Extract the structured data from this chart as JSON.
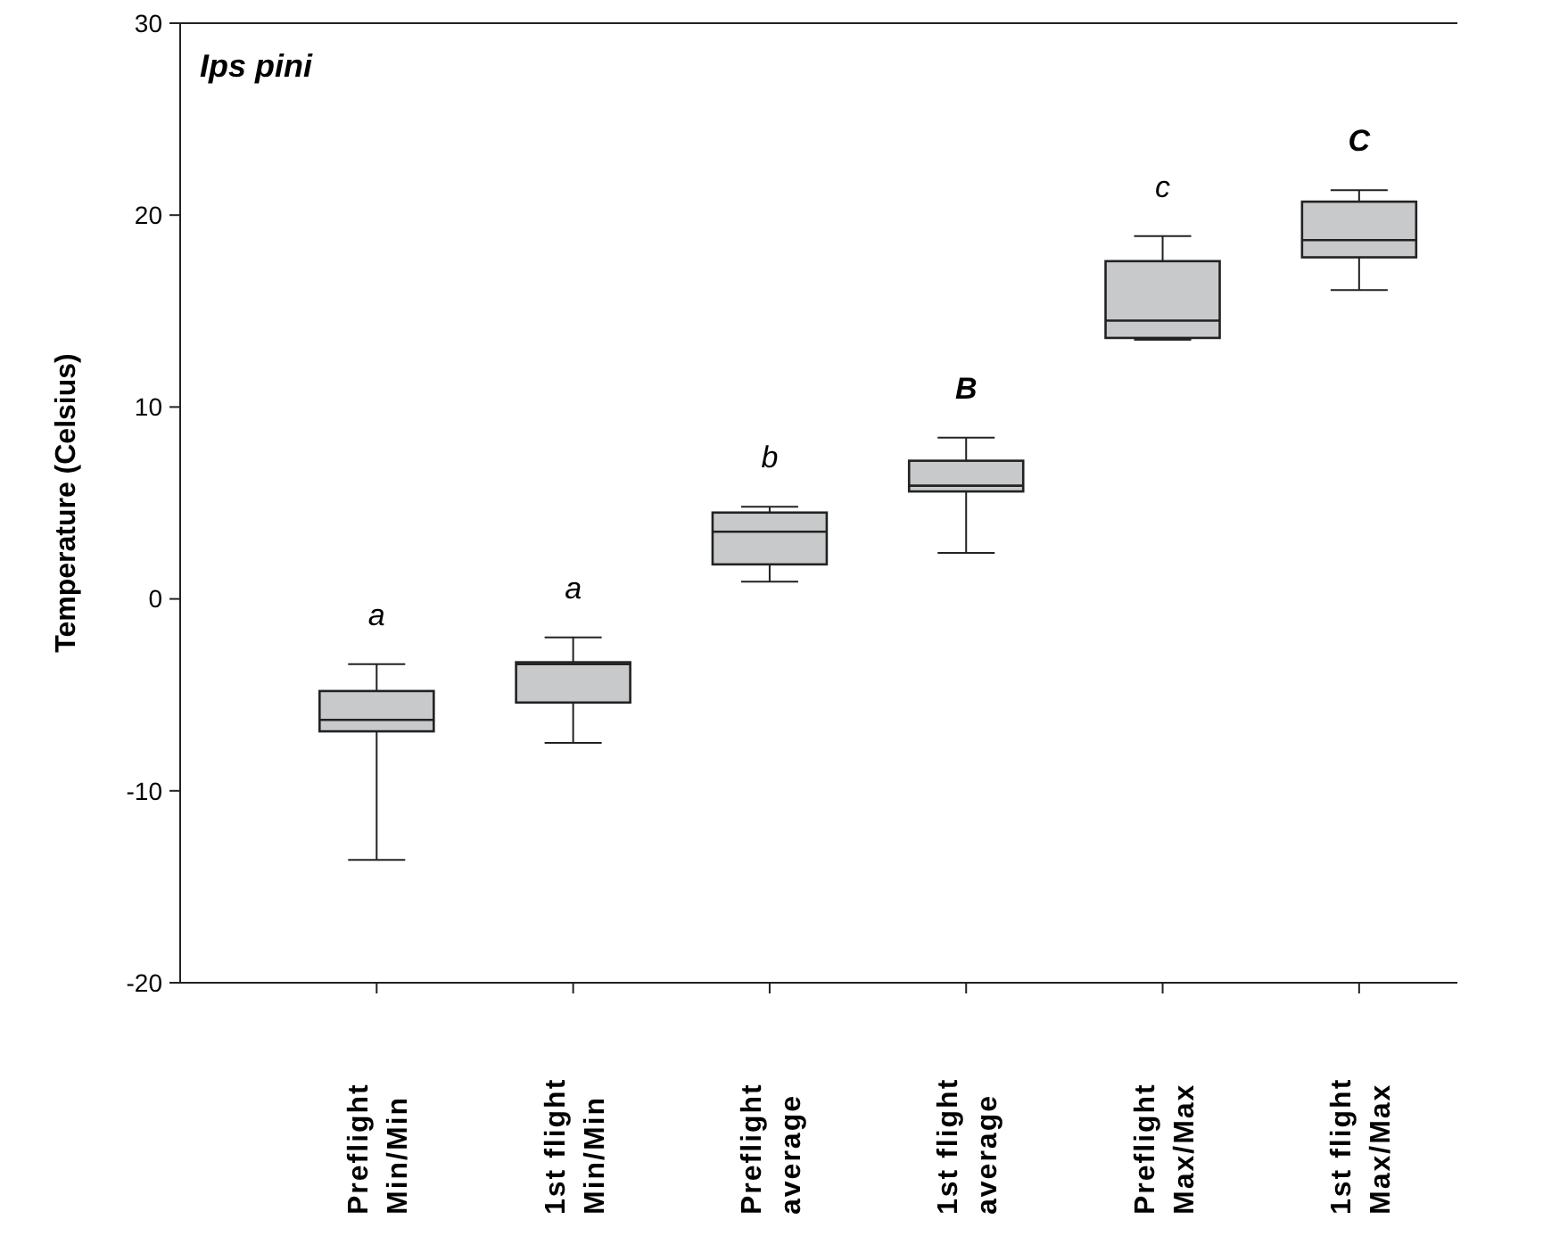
{
  "chart_data": {
    "type": "box",
    "title": "Ips pini",
    "ylabel": "Temperature (Celsius)",
    "categories": [
      "Preflight Min/Min",
      "1st flight Min/Min",
      "Preflight average",
      "1st flight average",
      "Preflight Max/Max",
      "1st flight Max/Max"
    ],
    "boxes": [
      {
        "low": -13.6,
        "q1": -6.9,
        "median": -6.3,
        "q3": -4.8,
        "high": -3.4
      },
      {
        "low": -7.5,
        "q1": -5.4,
        "median": -3.4,
        "q3": -3.3,
        "high": -2.0
      },
      {
        "low": 0.9,
        "q1": 1.8,
        "median": 3.5,
        "q3": 4.5,
        "high": 4.8
      },
      {
        "low": 2.4,
        "q1": 5.6,
        "median": 5.9,
        "q3": 7.2,
        "high": 8.4
      },
      {
        "low": 13.5,
        "q1": 13.6,
        "median": 14.5,
        "q3": 17.6,
        "high": 18.9
      },
      {
        "low": 16.1,
        "q1": 17.8,
        "median": 18.7,
        "q3": 20.7,
        "high": 21.3
      }
    ],
    "color": "#c8c9cb",
    "ylim": [
      -20,
      30
    ],
    "yticks": [
      -20,
      -10,
      0,
      10,
      20,
      30
    ],
    "annotations": [
      "a",
      "a",
      "b",
      "B",
      "c",
      "C"
    ]
  }
}
